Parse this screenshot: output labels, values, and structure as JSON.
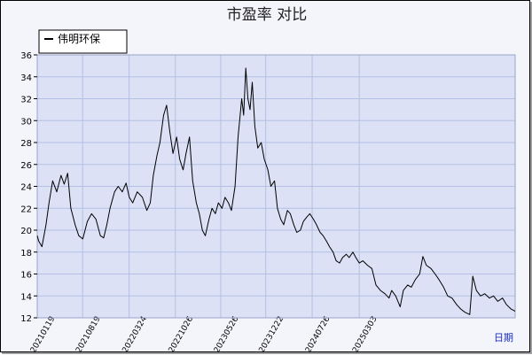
{
  "chart_data": {
    "type": "line",
    "title": "市盈率  对比",
    "x_axis_label": "日期",
    "ylim": [
      12,
      36
    ],
    "y_ticks": [
      12,
      14,
      16,
      18,
      20,
      22,
      24,
      26,
      28,
      30,
      32,
      34,
      36
    ],
    "x_ticks": [
      "20210119",
      "20210819",
      "20220324",
      "20221026",
      "20230526",
      "20231222",
      "20240726",
      "20250303"
    ],
    "grid": true,
    "legend_position": "top-left",
    "series": [
      {
        "name": "伟明环保",
        "color": "#000000",
        "points": [
          [
            "20210119",
            19.5
          ],
          [
            "20210126",
            19.0
          ],
          [
            "20210210",
            18.5
          ],
          [
            "20210301",
            20.5
          ],
          [
            "20210315",
            22.5
          ],
          [
            "20210401",
            24.5
          ],
          [
            "20210420",
            23.5
          ],
          [
            "20210510",
            25.0
          ],
          [
            "20210525",
            24.2
          ],
          [
            "20210610",
            25.2
          ],
          [
            "20210625",
            22.0
          ],
          [
            "20210715",
            20.5
          ],
          [
            "20210801",
            19.5
          ],
          [
            "20210820",
            19.2
          ],
          [
            "20210910",
            20.8
          ],
          [
            "20210930",
            21.5
          ],
          [
            "20211020",
            21.0
          ],
          [
            "20211110",
            19.5
          ],
          [
            "20211125",
            19.3
          ],
          [
            "20211210",
            20.5
          ],
          [
            "20211225",
            22.0
          ],
          [
            "20220115",
            23.5
          ],
          [
            "20220201",
            24.0
          ],
          [
            "20220220",
            23.5
          ],
          [
            "20220310",
            24.3
          ],
          [
            "20220325",
            23.0
          ],
          [
            "20220410",
            22.5
          ],
          [
            "20220501",
            23.5
          ],
          [
            "20220525",
            23.0
          ],
          [
            "20220615",
            21.8
          ],
          [
            "20220701",
            22.5
          ],
          [
            "20220715",
            25.0
          ],
          [
            "20220801",
            26.8
          ],
          [
            "20220815",
            28.0
          ],
          [
            "20220901",
            30.5
          ],
          [
            "20220915",
            31.4
          ],
          [
            "20220930",
            29.0
          ],
          [
            "20221015",
            27.0
          ],
          [
            "20221101",
            28.5
          ],
          [
            "20221115",
            26.5
          ],
          [
            "20221201",
            25.5
          ],
          [
            "20221215",
            27.0
          ],
          [
            "20221231",
            28.5
          ],
          [
            "20230115",
            24.5
          ],
          [
            "20230201",
            22.5
          ],
          [
            "20230215",
            21.5
          ],
          [
            "20230301",
            20.0
          ],
          [
            "20230315",
            19.5
          ],
          [
            "20230401",
            21.0
          ],
          [
            "20230415",
            22.0
          ],
          [
            "20230501",
            21.5
          ],
          [
            "20230515",
            22.5
          ],
          [
            "20230601",
            22.0
          ],
          [
            "20230615",
            23.0
          ],
          [
            "20230701",
            22.5
          ],
          [
            "20230715",
            21.8
          ],
          [
            "20230801",
            24.0
          ],
          [
            "20230815",
            28.5
          ],
          [
            "20230901",
            32.0
          ],
          [
            "20230910",
            30.5
          ],
          [
            "20230920",
            34.8
          ],
          [
            "20230930",
            32.0
          ],
          [
            "20231010",
            31.0
          ],
          [
            "20231020",
            33.5
          ],
          [
            "20231101",
            29.5
          ],
          [
            "20231115",
            27.5
          ],
          [
            "20231201",
            28.0
          ],
          [
            "20231215",
            26.5
          ],
          [
            "20240101",
            25.5
          ],
          [
            "20240115",
            24.0
          ],
          [
            "20240201",
            24.5
          ],
          [
            "20240215",
            22.0
          ],
          [
            "20240301",
            21.0
          ],
          [
            "20240315",
            20.5
          ],
          [
            "20240401",
            21.8
          ],
          [
            "20240415",
            21.5
          ],
          [
            "20240501",
            20.5
          ],
          [
            "20240515",
            19.8
          ],
          [
            "20240601",
            20.0
          ],
          [
            "20240615",
            20.8
          ],
          [
            "20240701",
            21.2
          ],
          [
            "20240715",
            21.5
          ],
          [
            "20240801",
            21.0
          ],
          [
            "20240815",
            20.5
          ],
          [
            "20240901",
            19.8
          ],
          [
            "20240915",
            19.5
          ],
          [
            "20241001",
            19.0
          ],
          [
            "20241015",
            18.5
          ],
          [
            "20241101",
            18.0
          ],
          [
            "20241115",
            17.2
          ],
          [
            "20241201",
            17.0
          ],
          [
            "20241215",
            17.5
          ],
          [
            "20250101",
            17.8
          ],
          [
            "20250115",
            17.5
          ],
          [
            "20250201",
            18.0
          ],
          [
            "20250215",
            17.5
          ],
          [
            "20250303",
            17.0
          ],
          [
            "20250320",
            17.2
          ],
          [
            "20250410",
            16.8
          ],
          [
            "20250501",
            16.5
          ],
          [
            "20250520",
            15.0
          ],
          [
            "20250610",
            14.5
          ],
          [
            "20250701",
            14.2
          ],
          [
            "20250720",
            13.8
          ],
          [
            "20250801",
            14.5
          ],
          [
            "20250820",
            14.0
          ],
          [
            "20250910",
            13.0
          ],
          [
            "20250925",
            14.5
          ],
          [
            "20251015",
            15.0
          ],
          [
            "20251101",
            14.8
          ],
          [
            "20251120",
            15.5
          ],
          [
            "20251210",
            16.0
          ],
          [
            "20251225",
            17.6
          ],
          [
            "20260110",
            16.8
          ],
          [
            "20260201",
            16.5
          ],
          [
            "20260220",
            16.0
          ],
          [
            "20260310",
            15.5
          ],
          [
            "20260401",
            14.8
          ],
          [
            "20260420",
            14.0
          ],
          [
            "20260510",
            13.8
          ],
          [
            "20260601",
            13.2
          ],
          [
            "20260620",
            12.8
          ],
          [
            "20260710",
            12.5
          ],
          [
            "20260801",
            12.3
          ],
          [
            "20260815",
            15.8
          ],
          [
            "20260901",
            14.5
          ],
          [
            "20260920",
            14.0
          ],
          [
            "20261010",
            14.2
          ],
          [
            "20261101",
            13.8
          ],
          [
            "20261120",
            14.0
          ],
          [
            "20261210",
            13.5
          ],
          [
            "20270101",
            13.8
          ],
          [
            "20270120",
            13.2
          ],
          [
            "20270210",
            12.8
          ],
          [
            "20270301",
            12.6
          ]
        ]
      }
    ]
  }
}
